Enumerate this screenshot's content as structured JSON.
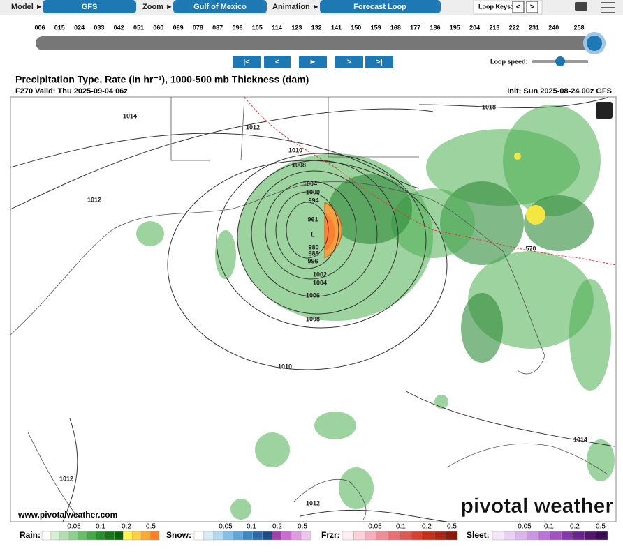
{
  "toolbar": {
    "model_label": "Model ►",
    "model": "GFS",
    "zoom_label": "Zoom ►",
    "zoom": "Gulf of Mexico",
    "animation_label": "Animation ►",
    "animation": "Forecast Loop",
    "loop_keys_label": "Loop Keys:",
    "loop_keys": [
      "<",
      ">"
    ]
  },
  "timeline": {
    "hours": [
      "006",
      "015",
      "024",
      "033",
      "042",
      "051",
      "060",
      "069",
      "078",
      "087",
      "096",
      "105",
      "114",
      "123",
      "132",
      "141",
      "150",
      "159",
      "168",
      "177",
      "186",
      "195",
      "204",
      "213",
      "222",
      "231",
      "240",
      "258"
    ],
    "buttons": [
      "|<",
      "<",
      "►",
      ">",
      ">|"
    ],
    "loop_speed_label": "Loop speed:"
  },
  "map": {
    "title": "Precipitation Type, Rate (in hr⁻¹), 1000-500 mb Thickness (dam)",
    "valid": "F270 Valid: Thu 2025-09-04 06z",
    "init": "Init: Sun 2025-08-24 00z GFS",
    "labels": [
      "1014",
      "1012",
      "1010",
      "1008",
      "1004",
      "1000",
      "994",
      "961",
      "L",
      "980",
      "988",
      "996",
      "1002",
      "1004",
      "1006",
      "1008",
      "1010",
      "1012",
      "1018",
      "1014",
      "1012",
      "1012",
      "570"
    ],
    "watermark_url": "www.pivotalweather.com",
    "watermark_logo": "pivotal weather"
  },
  "legend": [
    {
      "name": "Rain:",
      "ticks": [
        "0.05",
        "0.1",
        "0.2",
        "0.5"
      ]
    },
    {
      "name": "Snow:",
      "ticks": [
        "0.05",
        "0.1",
        "0.2",
        "0.5"
      ]
    },
    {
      "name": "Frzr:",
      "ticks": [
        "0.05",
        "0.1",
        "0.2",
        "0.5"
      ]
    },
    {
      "name": "Sleet:",
      "ticks": [
        "0.05",
        "0.1",
        "0.2",
        "0.5"
      ]
    }
  ]
}
